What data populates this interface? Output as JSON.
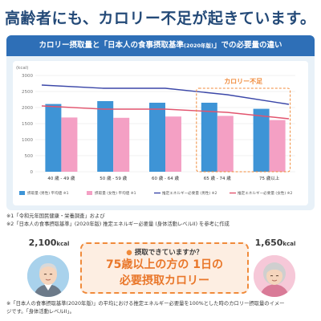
{
  "headline": "高齢者にも、カロリー不足が起きています。",
  "chart_card": {
    "banner_main": "カロリー摂取量と「日本人の食事摂取基準",
    "banner_small": "(2020年版)",
    "banner_tail": "」での必要量の違い"
  },
  "notes": {
    "note1": "※1「令和元年国民健康・栄養調査」および",
    "note2": "※2「日本人の食事摂取基準」(2020年版) 推定エネルギー必要量 (身体活動レベルII) を参考に作成"
  },
  "callout": {
    "left_kcal_value": "2,100",
    "left_kcal_unit": "kcal",
    "right_kcal_value": "1,650",
    "right_kcal_unit": "kcal",
    "question": "摂取できていますか？",
    "line1": "75歳以上の方の 1日の",
    "line2": "必要摂取カロリー"
  },
  "footnote": {
    "line1": "※「日本人の食事摂取基準(2020年版)」の平均における推定エネルギー必要量を100%とした時のカロリー摂取量のイメー",
    "line2": "ジです。「身体活動レベルII」。"
  },
  "colors": {
    "headline": "#244a78",
    "banner": "#2e6fb7",
    "male_bar": "#3e94d6",
    "female_bar": "#f4a0c4",
    "male_line": "#3b47a8",
    "female_line": "#e2546e",
    "shortage_label": "#f08a3a"
  },
  "chart_data": {
    "type": "bar",
    "ylabel": "(kcal)",
    "ylim": [
      0,
      3000
    ],
    "yticks": [
      0,
      500,
      1000,
      1500,
      2000,
      2500,
      3000
    ],
    "grid": true,
    "categories": [
      "40 歳 - 49 歳",
      "50 歳 - 59 歳",
      "60 歳 - 64 歳",
      "65 歳 - 74 歳",
      "75 歳以上"
    ],
    "series": [
      {
        "name": "摂取量 (男性) 平均値 ※1",
        "kind": "bar",
        "values": [
          2110,
          2200,
          2150,
          2150,
          1960
        ]
      },
      {
        "name": "摂取量 (女性) 平均値 ※1",
        "kind": "bar",
        "values": [
          1690,
          1680,
          1720,
          1740,
          1610
        ]
      },
      {
        "name": "推定エネルギー必要量 (男性) ※2",
        "kind": "line",
        "values": [
          2700,
          2600,
          2600,
          2400,
          2100
        ]
      },
      {
        "name": "推定エネルギー必要量 (女性) ※2",
        "kind": "line",
        "values": [
          2050,
          1950,
          1950,
          1850,
          1650
        ]
      }
    ],
    "annotation": "カロリー不足",
    "legend_position": "bottom"
  }
}
